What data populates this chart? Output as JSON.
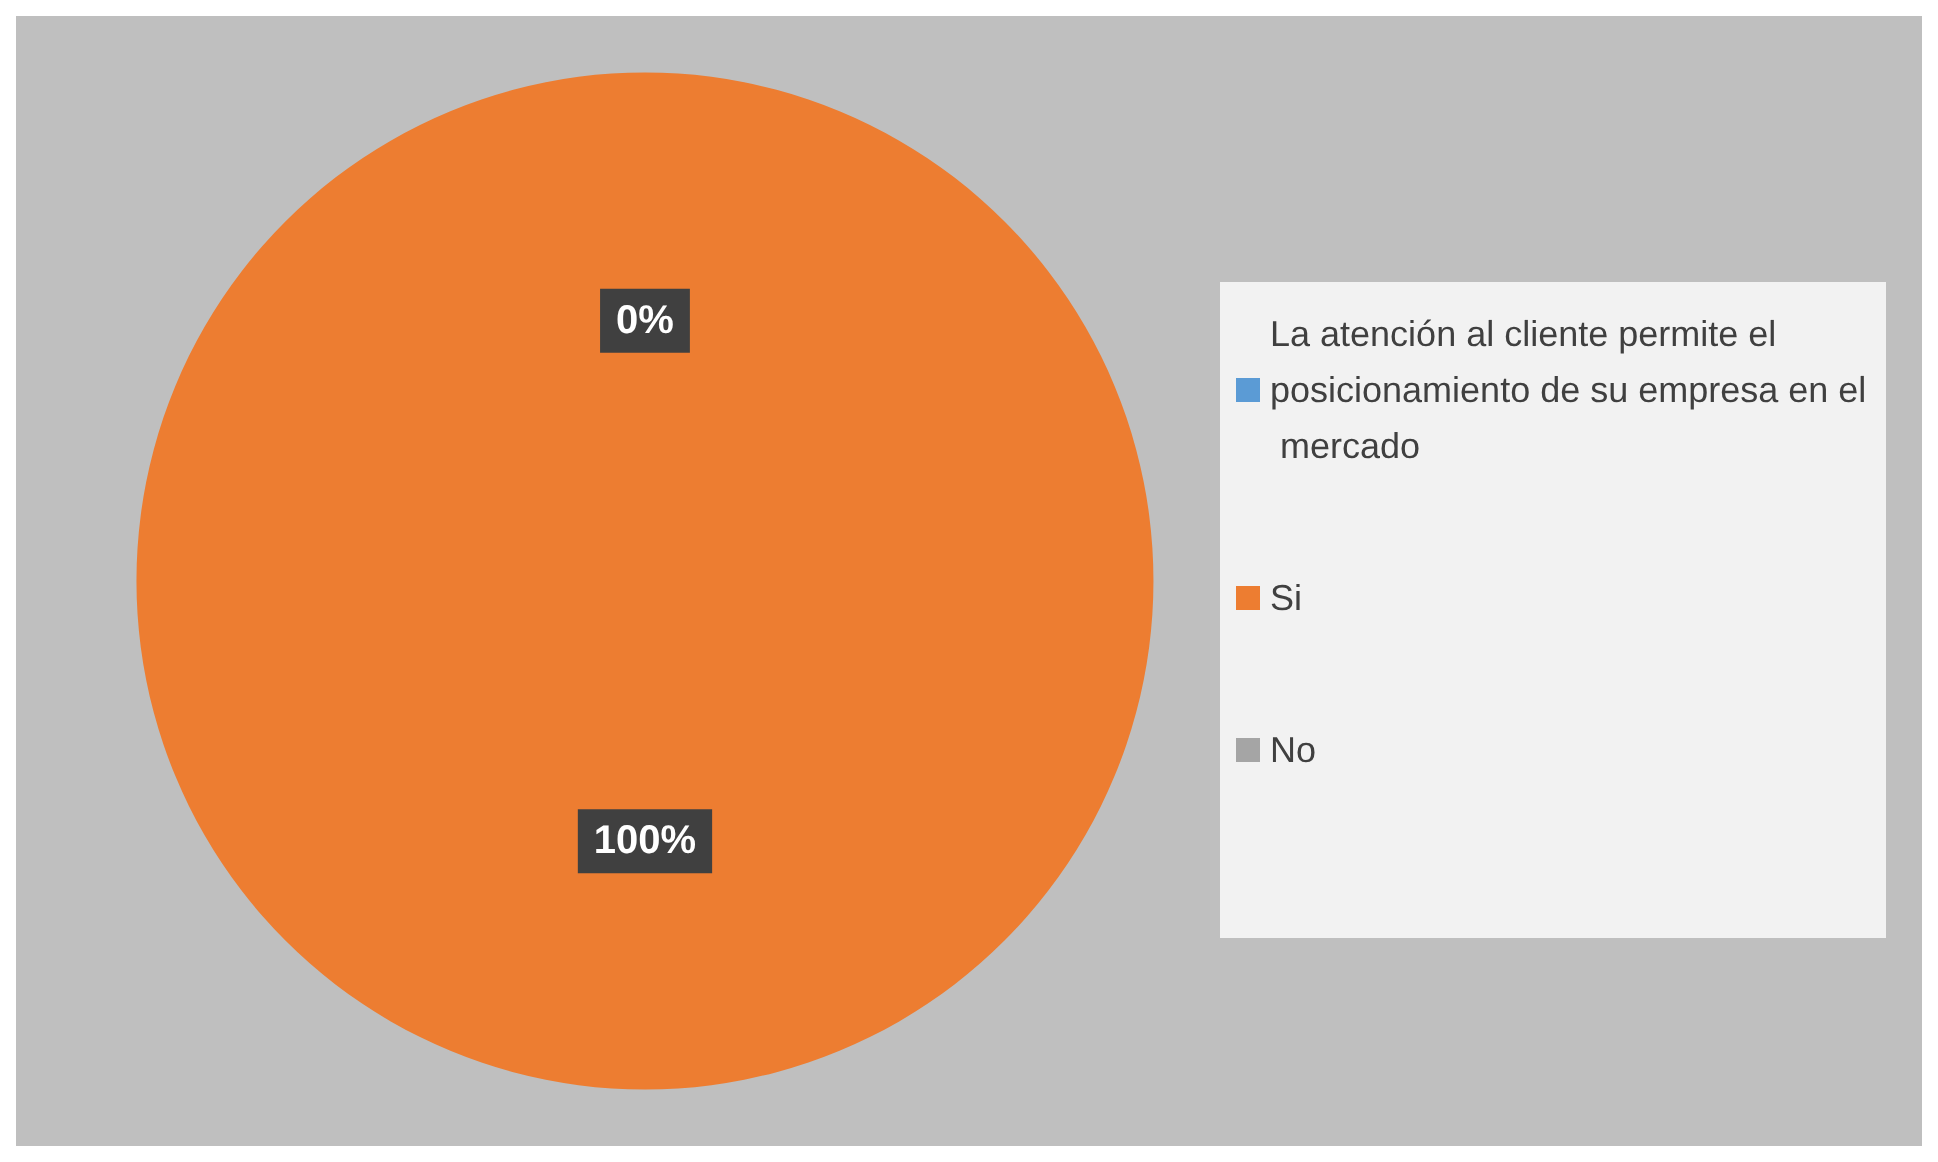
{
  "chart_data": {
    "type": "pie",
    "categories": [
      "La atención al cliente permite el posicionamiento de su empresa en el mercado",
      "Si",
      "No"
    ],
    "values": [
      0,
      100,
      0
    ],
    "colors": [
      "#5b9bd5",
      "#ed7d31",
      "#a5a5a5"
    ],
    "value_labels": [
      "0%",
      "100%",
      null
    ],
    "legend": "right"
  }
}
